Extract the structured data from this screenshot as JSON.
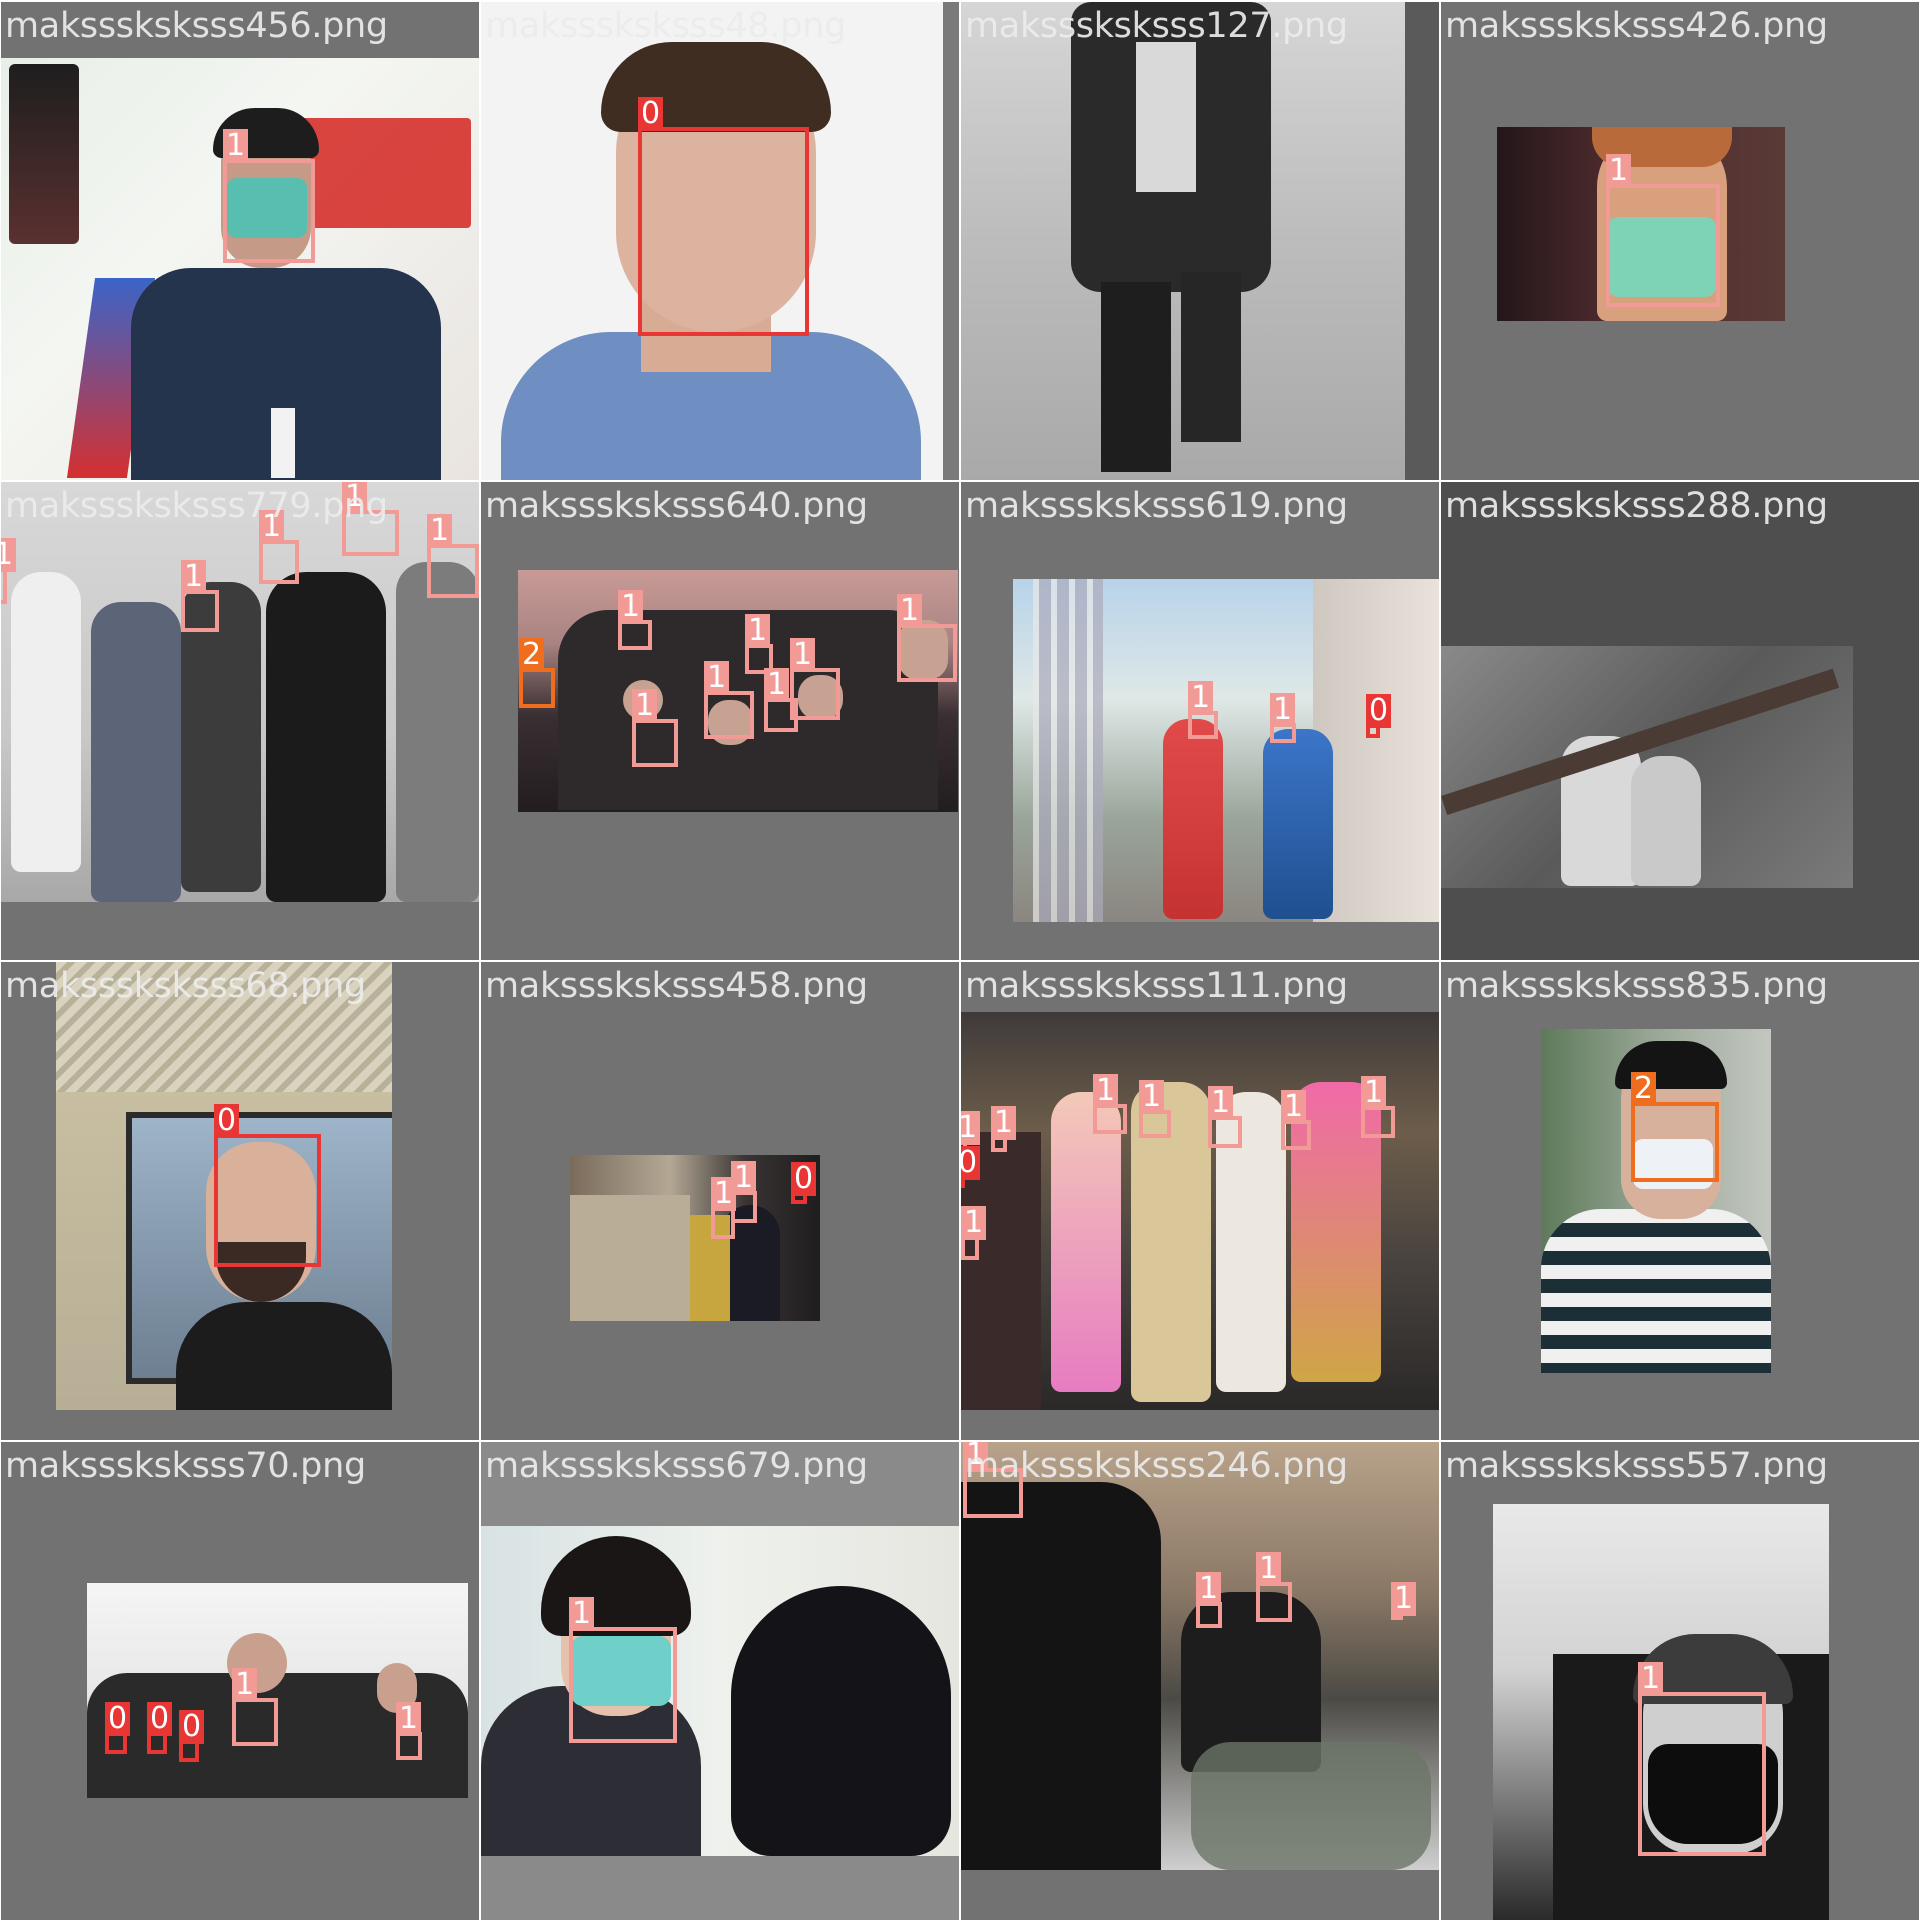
{
  "colors": {
    "class_0": "#e73634",
    "class_1": "#f29a96",
    "class_2": "#ee6d1f",
    "tile_bg": "#727272",
    "tile_bg_dark": "#4e4e4e"
  },
  "classes": [
    "0",
    "1",
    "2"
  ],
  "tiles": [
    {
      "filename": "maksssksksss456.png",
      "scene": "masked woman being interviewed in front of red signage",
      "detections": [
        {
          "label": "1"
        }
      ]
    },
    {
      "filename": "maksssksksss48.png",
      "scene": "young man selfie without mask",
      "detections": [
        {
          "label": "0"
        }
      ]
    },
    {
      "filename": "maksssksksss127.png",
      "scene": "grayscale person walking on street",
      "detections": []
    },
    {
      "filename": "maksssksksss426.png",
      "scene": "boy wearing green surgical mask",
      "detections": [
        {
          "label": "1"
        }
      ]
    },
    {
      "filename": "maksssksksss779.png",
      "scene": "crowd of people waiting in line wearing masks",
      "detections": [
        {
          "label": "1"
        },
        {
          "label": "1"
        },
        {
          "label": "1"
        },
        {
          "label": "1"
        },
        {
          "label": "1"
        }
      ]
    },
    {
      "filename": "maksssksksss640.png",
      "scene": "crowd with masks in front of pink wall",
      "detections": [
        {
          "label": "2"
        },
        {
          "label": "1"
        },
        {
          "label": "1"
        },
        {
          "label": "1"
        },
        {
          "label": "1"
        },
        {
          "label": "1"
        },
        {
          "label": "1"
        },
        {
          "label": "1"
        }
      ]
    },
    {
      "filename": "maksssksksss619.png",
      "scene": "pedestrians walking on sidewalk with flags",
      "detections": [
        {
          "label": "1"
        },
        {
          "label": "1"
        },
        {
          "label": "0"
        }
      ]
    },
    {
      "filename": "maksssksksss288.png",
      "scene": "two masked people on escalator",
      "detections": []
    },
    {
      "filename": "maksssksksss68.png",
      "scene": "bearded man by brick building without mask",
      "detections": [
        {
          "label": "0"
        }
      ]
    },
    {
      "filename": "maksssksksss458.png",
      "scene": "subway platform with commuters",
      "detections": [
        {
          "label": "1"
        },
        {
          "label": "1"
        },
        {
          "label": "0"
        }
      ]
    },
    {
      "filename": "maksssksksss111.png",
      "scene": "fashion runway models wearing masks",
      "detections": [
        {
          "label": "1"
        },
        {
          "label": "1"
        },
        {
          "label": "1"
        },
        {
          "label": "1"
        },
        {
          "label": "1"
        },
        {
          "label": "1"
        },
        {
          "label": "1"
        },
        {
          "label": "0"
        },
        {
          "label": "1"
        }
      ]
    },
    {
      "filename": "maksssksksss835.png",
      "scene": "man in cap with mask pulled down",
      "detections": [
        {
          "label": "2"
        }
      ]
    },
    {
      "filename": "maksssksksss70.png",
      "scene": "crowd outdoors in winter",
      "detections": [
        {
          "label": "0"
        },
        {
          "label": "0"
        },
        {
          "label": "0"
        },
        {
          "label": "1"
        },
        {
          "label": "1"
        }
      ]
    },
    {
      "filename": "maksssksksss679.png",
      "scene": "woman in green mask taking temperature",
      "detections": [
        {
          "label": "1"
        }
      ]
    },
    {
      "filename": "maksssksksss246.png",
      "scene": "food bags being handed out near apartment buildings",
      "detections": [
        {
          "label": "1"
        },
        {
          "label": "1"
        },
        {
          "label": "1"
        },
        {
          "label": "1"
        }
      ]
    },
    {
      "filename": "maksssksksss557.png",
      "scene": "grayscale man wearing black mask",
      "detections": [
        {
          "label": "1"
        }
      ]
    }
  ]
}
